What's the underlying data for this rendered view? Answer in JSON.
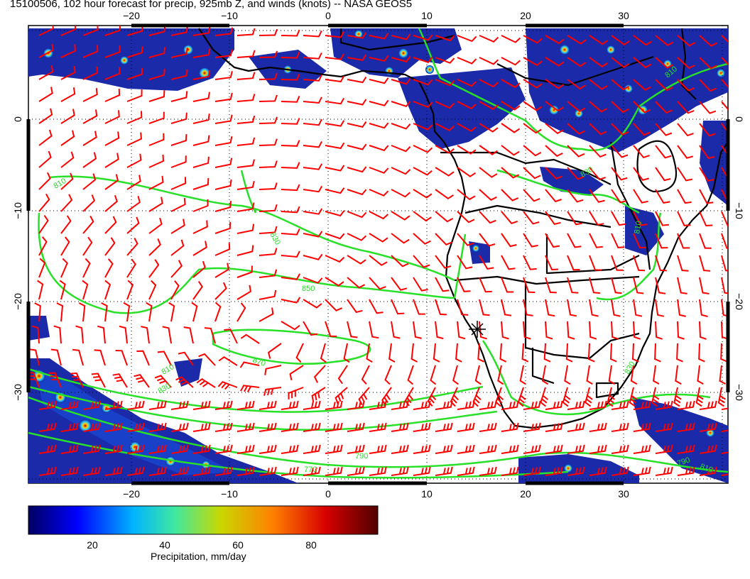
{
  "title": "15100506, 102 hour forecast for precip, 925mb Z, and winds (knots) -- NASA GEOS5",
  "lon_ticks": [
    "−20",
    "−10",
    "0",
    "10",
    "20",
    "30"
  ],
  "lat_ticks": [
    "0",
    "−10",
    "−20",
    "−30"
  ],
  "contour_labels": [
    "810",
    "830",
    "850",
    "870",
    "810",
    "830",
    "790",
    "770",
    "790",
    "810",
    "810",
    "830",
    "810",
    "830"
  ],
  "colorbar": {
    "label": "Precipitation, mm/day",
    "ticks": [
      "20",
      "40",
      "60",
      "80"
    ],
    "colors": [
      "#000080",
      "#0000ff",
      "#00c8ff",
      "#40e0a0",
      "#c8d800",
      "#ff8000",
      "#d00000",
      "#6a0000"
    ]
  },
  "colors": {
    "contour": "#28e028",
    "wind_barb": "#ff0000",
    "land_outline": "#000000",
    "precip_low": "#1020a0"
  }
}
